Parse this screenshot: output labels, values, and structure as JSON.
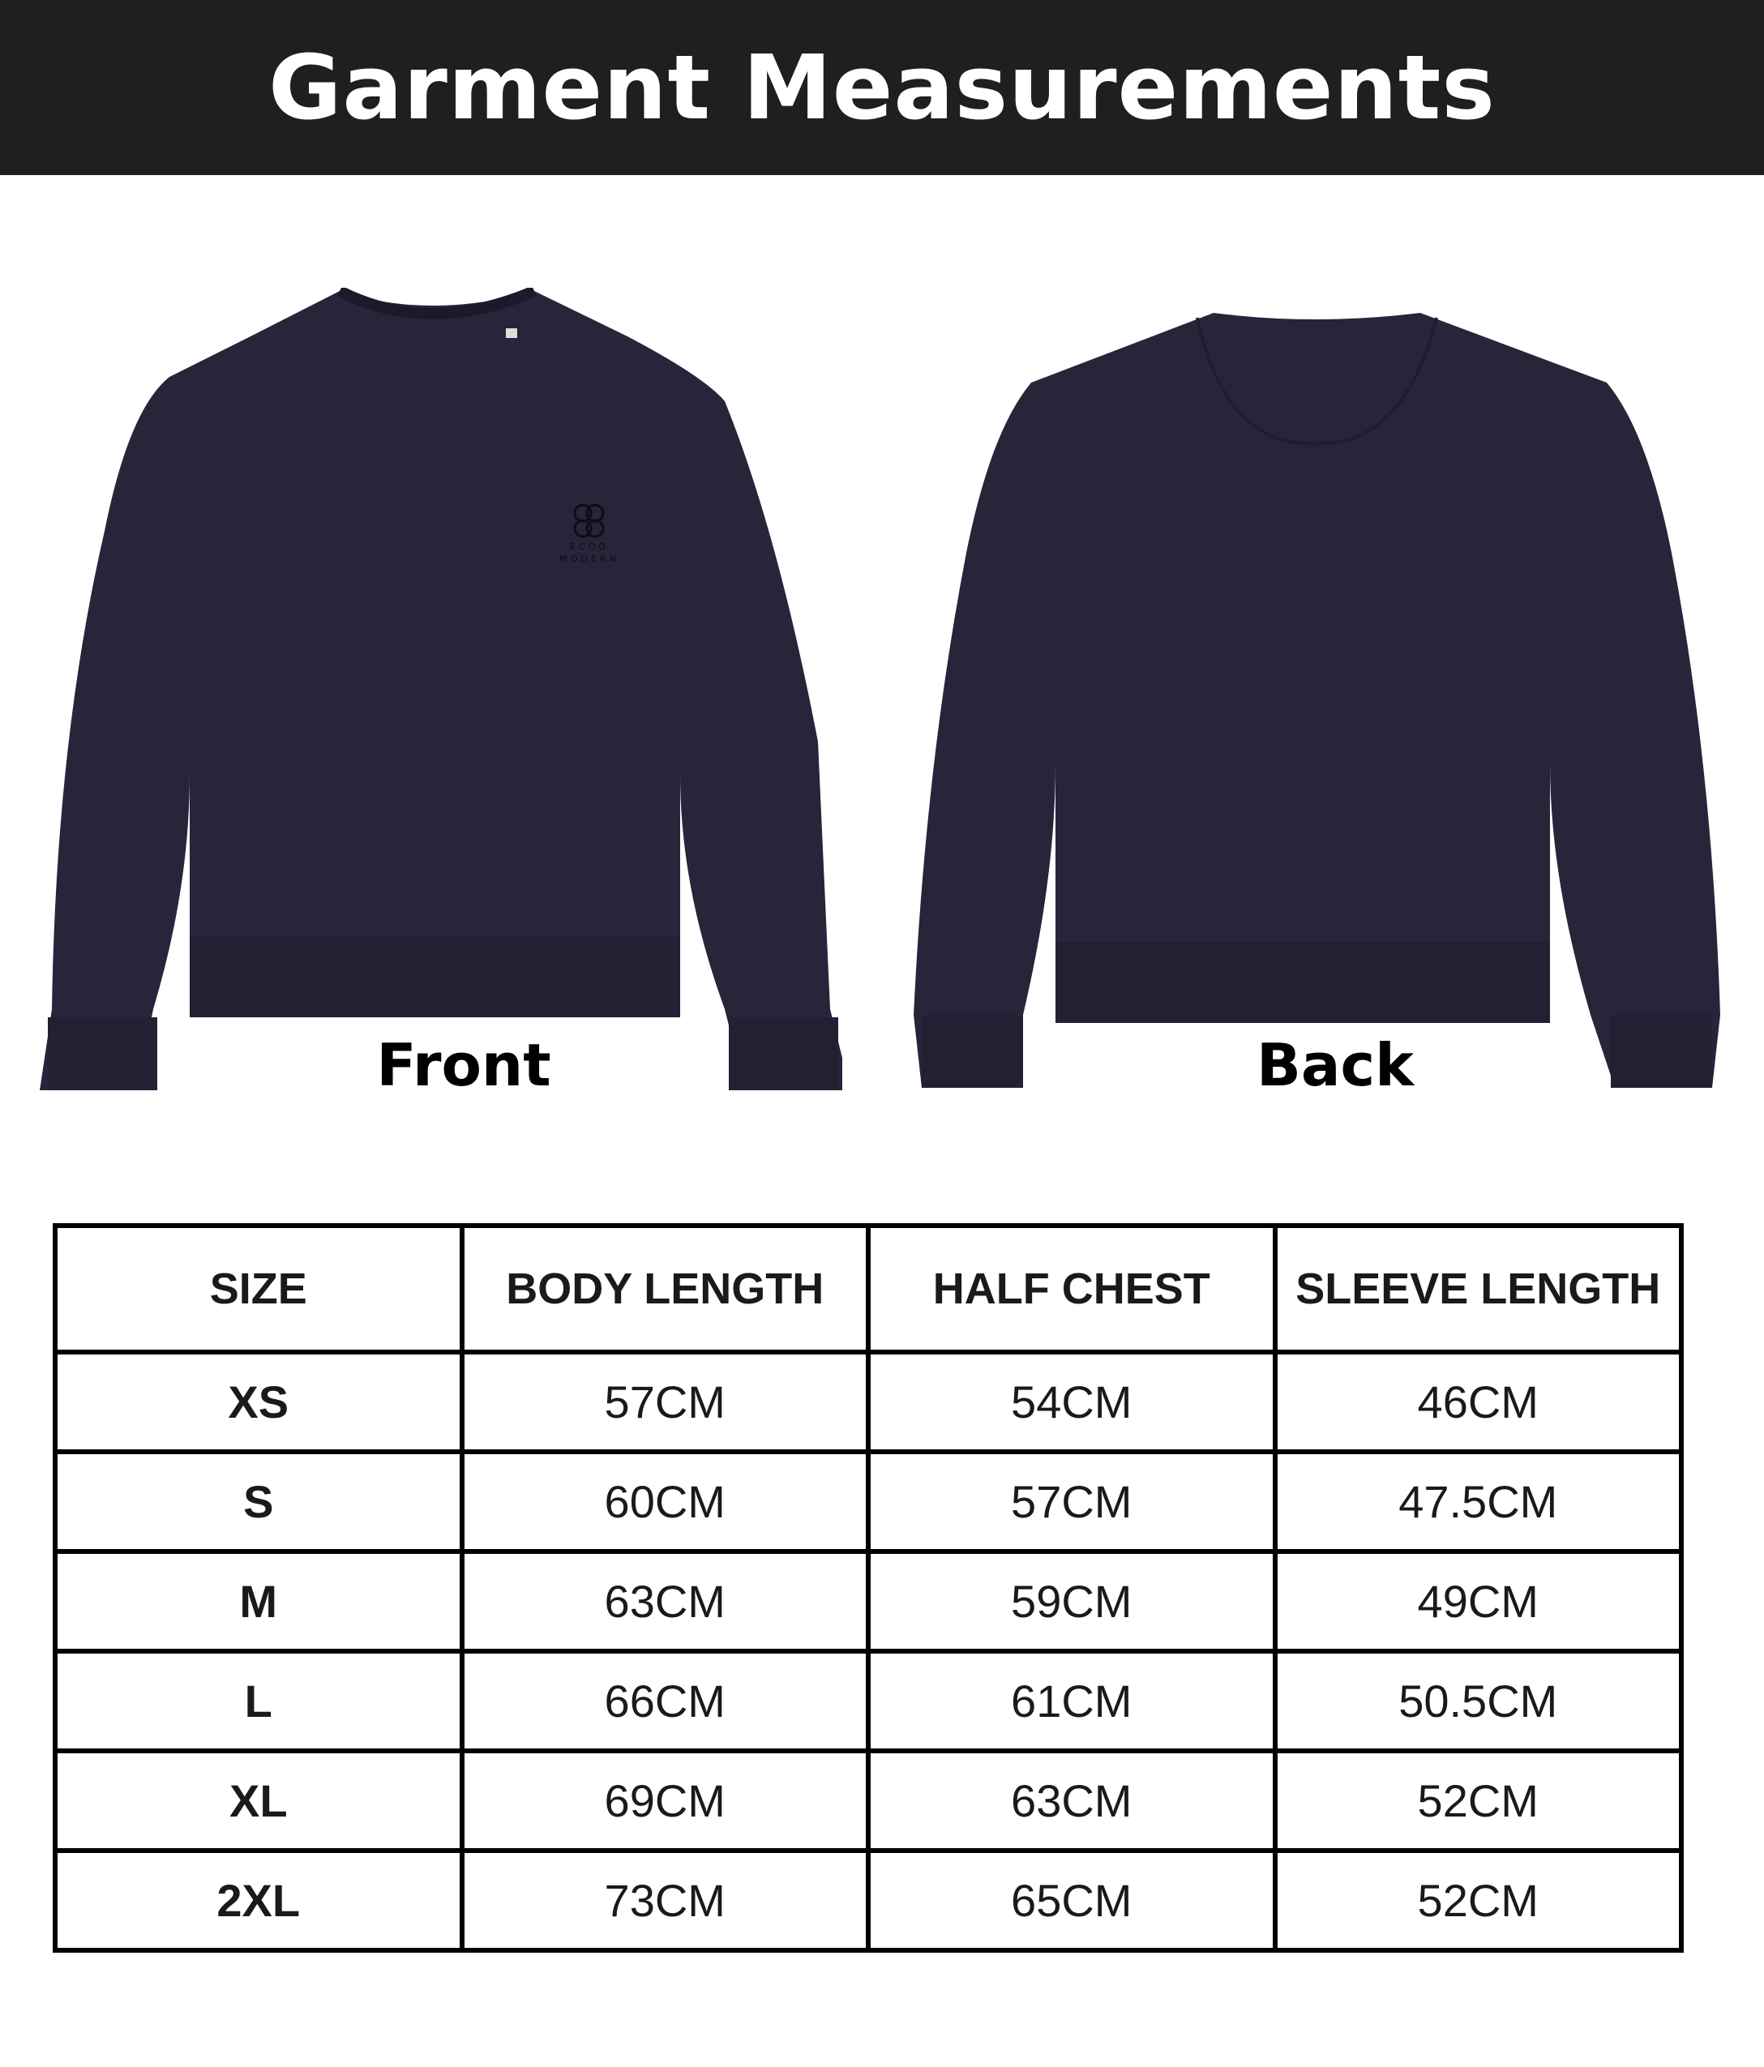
{
  "header": {
    "title": "Garment Measurements"
  },
  "garments": {
    "front_label": "Front",
    "back_label": "Back",
    "color": "#26253a",
    "logo_text": [
      "ECOO",
      "MODERN"
    ]
  },
  "table": {
    "columns": [
      "SIZE",
      "BODY LENGTH",
      "HALF CHEST",
      "SLEEVE LENGTH"
    ],
    "rows": [
      [
        "XS",
        "57CM",
        "54CM",
        "46CM"
      ],
      [
        "S",
        "60CM",
        "57CM",
        "47.5CM"
      ],
      [
        "M",
        "63CM",
        "59CM",
        "49CM"
      ],
      [
        "L",
        "66CM",
        "61CM",
        "50.5CM"
      ],
      [
        "XL",
        "69CM",
        "63CM",
        "52CM"
      ],
      [
        "2XL",
        "73CM",
        "65CM",
        "52CM"
      ]
    ]
  }
}
